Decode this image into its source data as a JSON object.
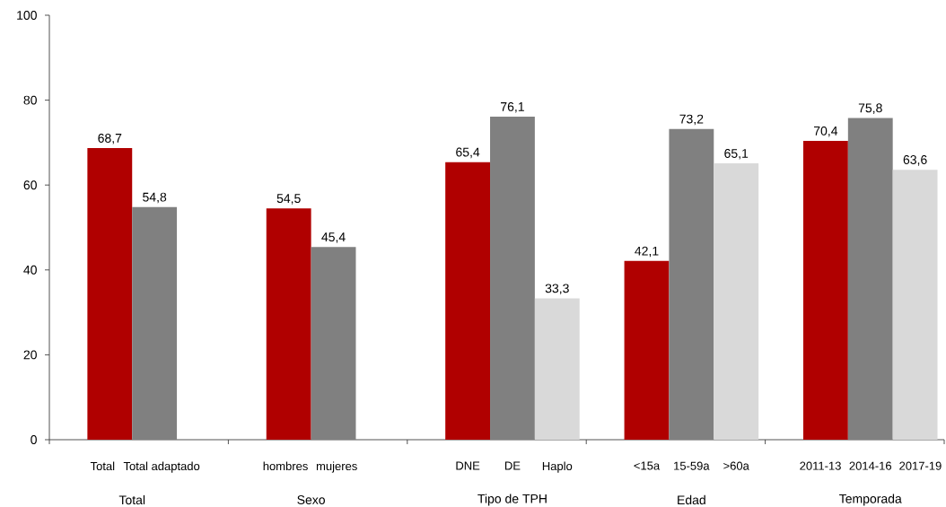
{
  "chart_data": {
    "type": "bar",
    "categories": [
      null,
      "Total",
      "Total adaptado",
      null,
      null,
      "hombres",
      "mujeres",
      null,
      null,
      "DNE",
      "DE",
      "Haplo",
      null,
      "<15a",
      "15-59a",
      ">60a",
      null,
      "2011-13",
      "2014-16",
      "2017-19"
    ],
    "values": [
      null,
      68.7,
      54.8,
      null,
      null,
      54.5,
      45.4,
      null,
      null,
      65.4,
      76.1,
      33.3,
      null,
      42.1,
      73.2,
      65.1,
      null,
      70.4,
      75.8,
      63.6
    ],
    "colors": [
      null,
      "#b00000",
      "#808080",
      null,
      null,
      "#b00000",
      "#808080",
      null,
      null,
      "#b00000",
      "#808080",
      "#d9d9d9",
      null,
      "#b00000",
      "#808080",
      "#d9d9d9",
      null,
      "#b00000",
      "#808080",
      "#d9d9d9"
    ],
    "value_labels": [
      null,
      "68,7",
      "54,8",
      null,
      null,
      "54,5",
      "45,4",
      null,
      null,
      "65,4",
      "76,1",
      "33,3",
      null,
      "42,1",
      "73,2",
      "65,1",
      null,
      "70,4",
      "75,8",
      "63,6"
    ],
    "annotations": [
      "Total",
      "Sexo",
      "Tipo de TPH",
      "Edad",
      "Temporada"
    ],
    "ylim": [
      0,
      100
    ],
    "yticks": [
      0,
      20,
      40,
      60,
      80,
      100
    ]
  }
}
